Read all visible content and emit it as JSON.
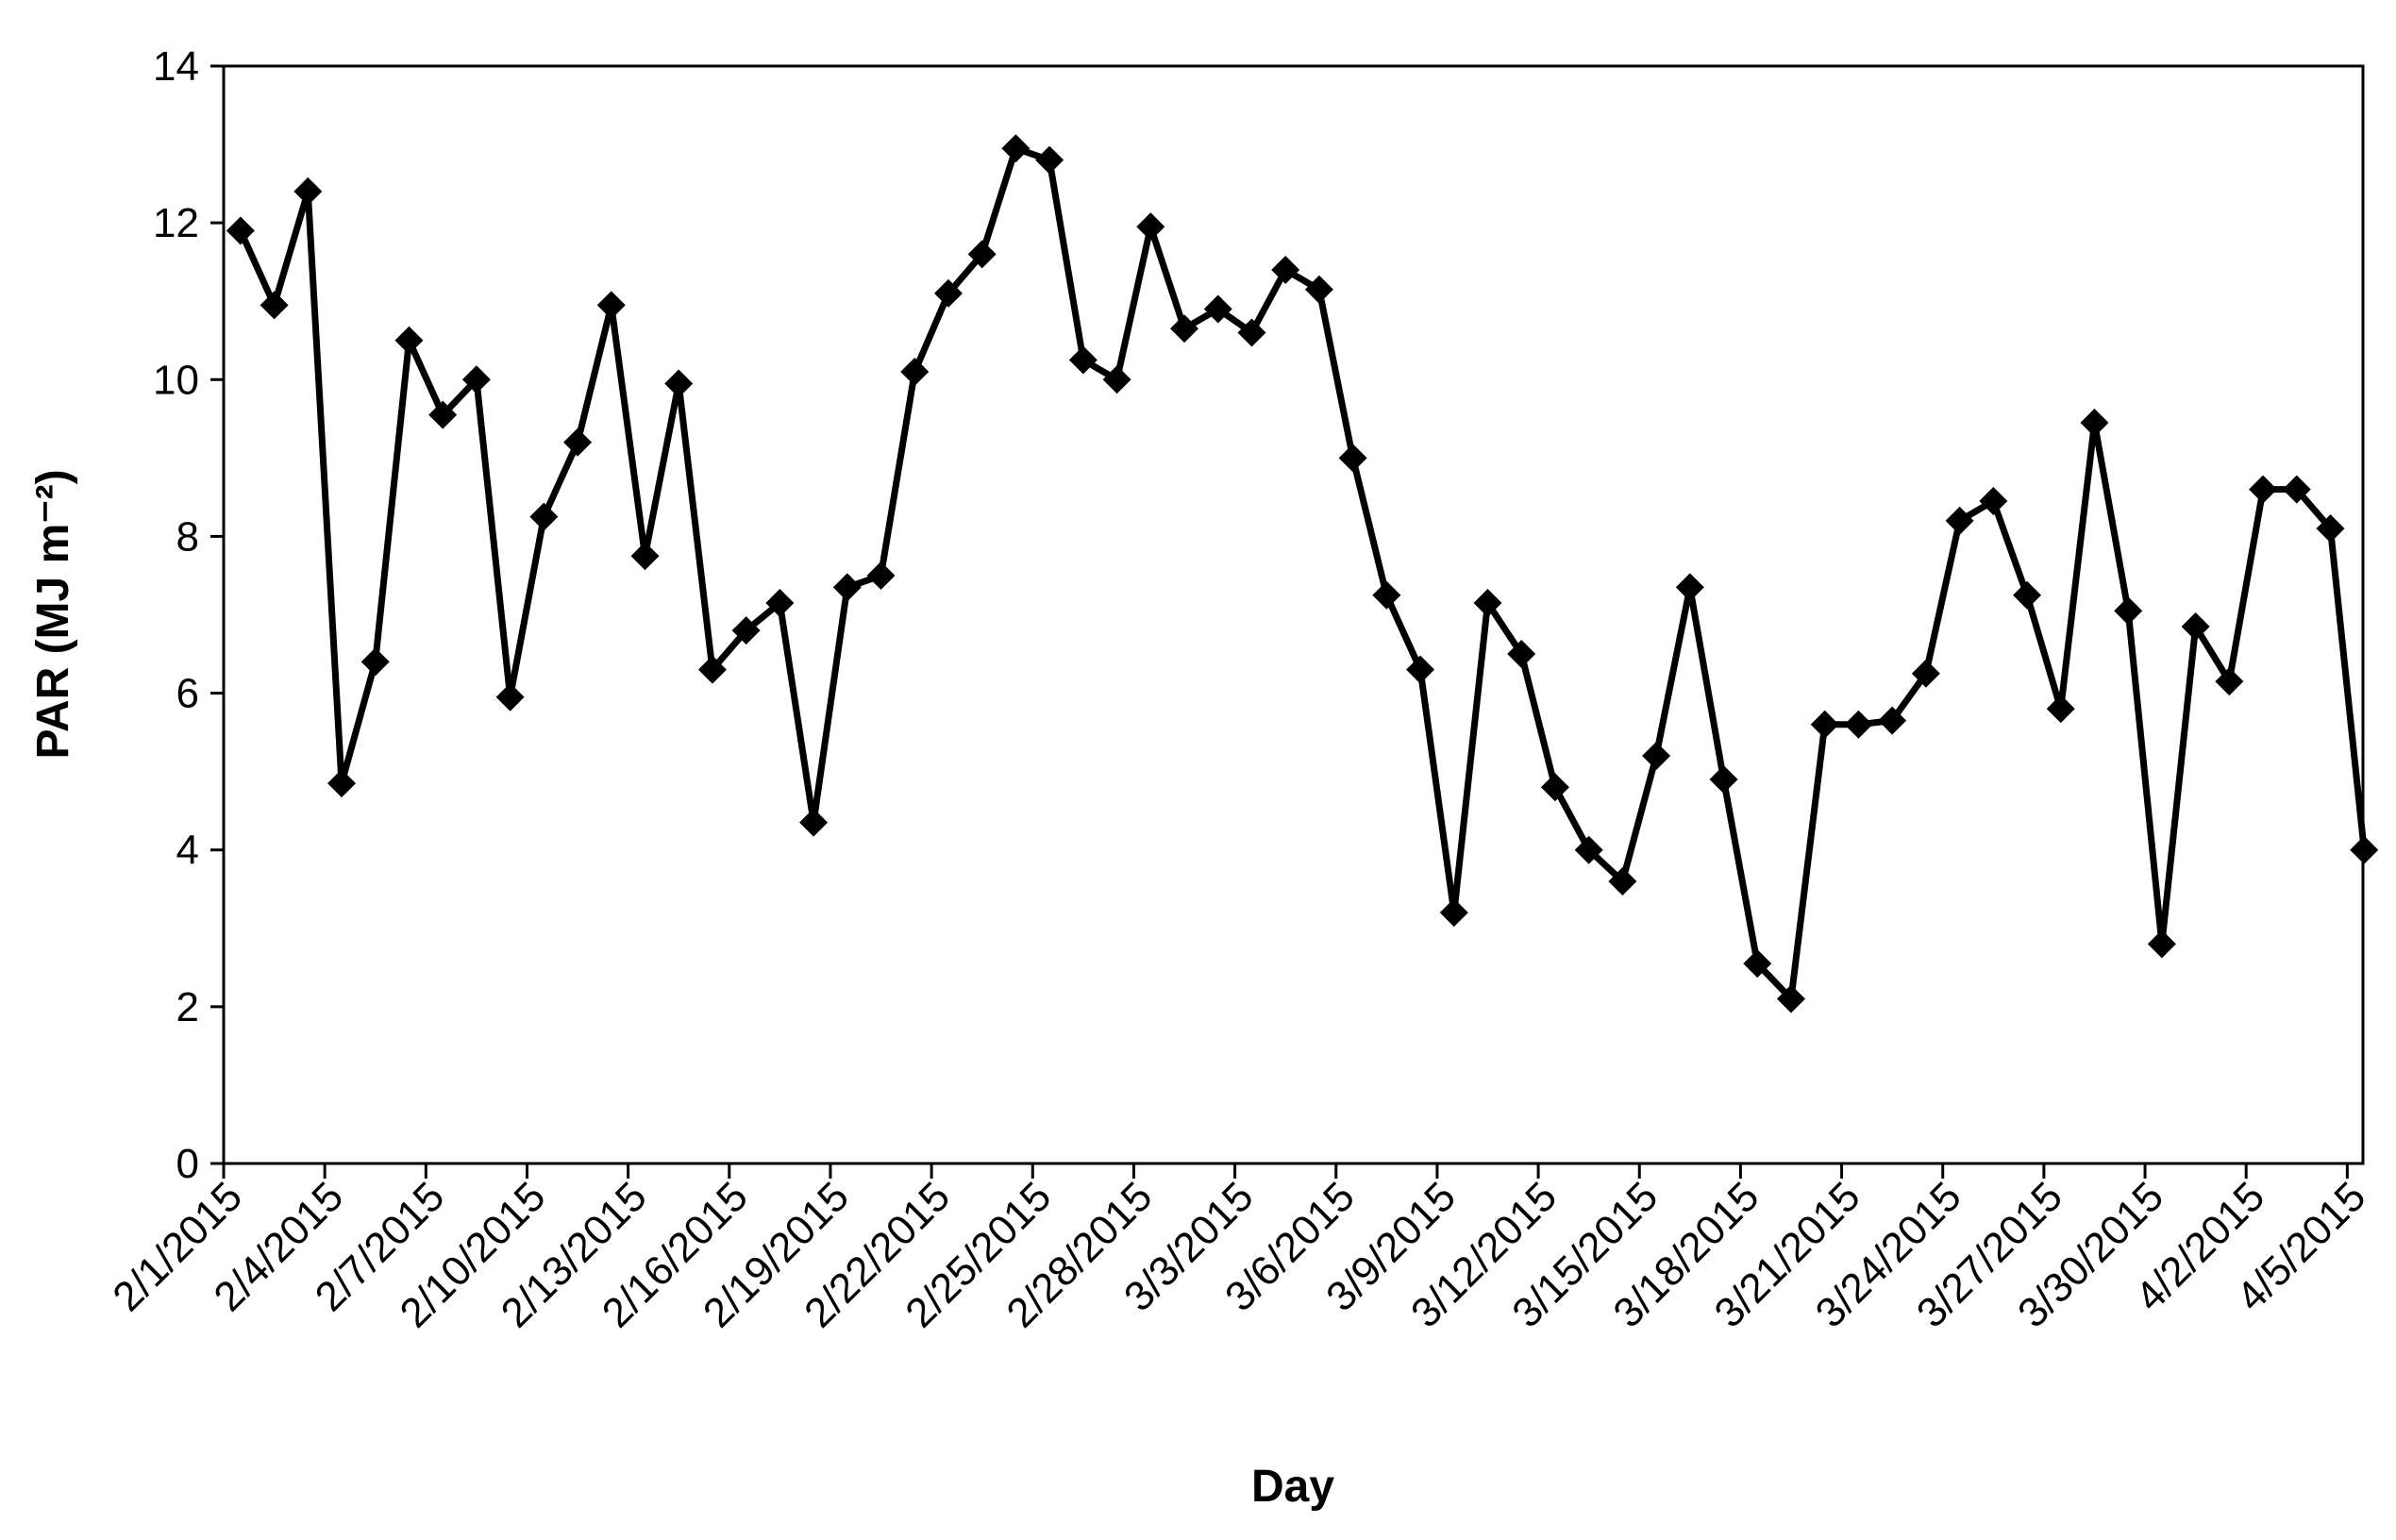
{
  "chart_data": {
    "type": "line",
    "title": "",
    "xlabel": "Day",
    "ylabel": "PAR (MJ m⁻²)",
    "ylim": [
      0,
      14
    ],
    "yticks": [
      0,
      2,
      4,
      6,
      8,
      10,
      12,
      14
    ],
    "xlim": [
      "2/1/2015",
      "4/5/2015"
    ],
    "xtick_labels": [
      "2/1/2015",
      "2/4/2015",
      "2/7/2015",
      "2/10/2015",
      "2/13/2015",
      "2/16/2015",
      "2/19/2015",
      "2/22/2015",
      "2/25/2015",
      "2/28/2015",
      "3/3/2015",
      "3/6/2015",
      "3/9/2015",
      "3/12/2015",
      "3/15/2015",
      "3/18/2015",
      "3/21/2015",
      "3/24/2015",
      "3/27/2015",
      "3/30/2015",
      "4/2/2015",
      "4/5/2015"
    ],
    "grid": false,
    "legend": "none",
    "marker": "diamond",
    "line_color": "#000000",
    "series": [
      {
        "x": [
          "2/1/2015",
          "2/2/2015",
          "2/3/2015",
          "2/4/2015",
          "2/5/2015",
          "2/6/2015",
          "2/7/2015",
          "2/8/2015",
          "2/9/2015",
          "2/10/2015",
          "2/11/2015",
          "2/12/2015",
          "2/13/2015",
          "2/14/2015",
          "2/15/2015",
          "2/16/2015",
          "2/17/2015",
          "2/18/2015",
          "2/19/2015",
          "2/20/2015",
          "2/21/2015",
          "2/22/2015",
          "2/23/2015",
          "2/24/2015",
          "2/25/2015",
          "2/26/2015",
          "2/27/2015",
          "2/28/2015",
          "3/1/2015",
          "3/2/2015",
          "3/3/2015",
          "3/4/2015",
          "3/5/2015",
          "3/6/2015",
          "3/7/2015",
          "3/8/2015",
          "3/9/2015",
          "3/10/2015",
          "3/11/2015",
          "3/12/2015",
          "3/13/2015",
          "3/14/2015",
          "3/15/2015",
          "3/16/2015",
          "3/17/2015",
          "3/18/2015",
          "3/19/2015",
          "3/20/2015",
          "3/21/2015",
          "3/22/2015",
          "3/23/2015",
          "3/24/2015",
          "3/25/2015",
          "3/26/2015",
          "3/27/2015",
          "3/28/2015",
          "3/29/2015",
          "3/30/2015",
          "3/31/2015",
          "4/1/2015",
          "4/2/2015",
          "4/3/2015",
          "4/4/2015",
          "4/5/2015"
        ],
        "values": [
          11.9,
          10.95,
          12.4,
          4.85,
          6.4,
          10.5,
          9.55,
          10.0,
          5.95,
          8.25,
          9.2,
          10.95,
          7.75,
          9.95,
          6.3,
          6.8,
          7.15,
          4.35,
          7.35,
          7.5,
          10.1,
          11.1,
          11.6,
          12.95,
          12.8,
          10.25,
          10.0,
          11.95,
          10.65,
          10.9,
          10.6,
          11.4,
          11.15,
          9.0,
          7.25,
          6.3,
          3.2,
          7.15,
          6.5,
          4.8,
          4.0,
          3.6,
          5.2,
          7.35,
          4.9,
          2.55,
          2.1,
          5.6,
          5.6,
          5.65,
          6.25,
          8.2,
          8.45,
          7.25,
          5.8,
          9.45,
          7.05,
          2.8,
          6.85,
          6.15,
          8.6,
          8.6,
          8.1,
          4.0
        ]
      }
    ]
  }
}
